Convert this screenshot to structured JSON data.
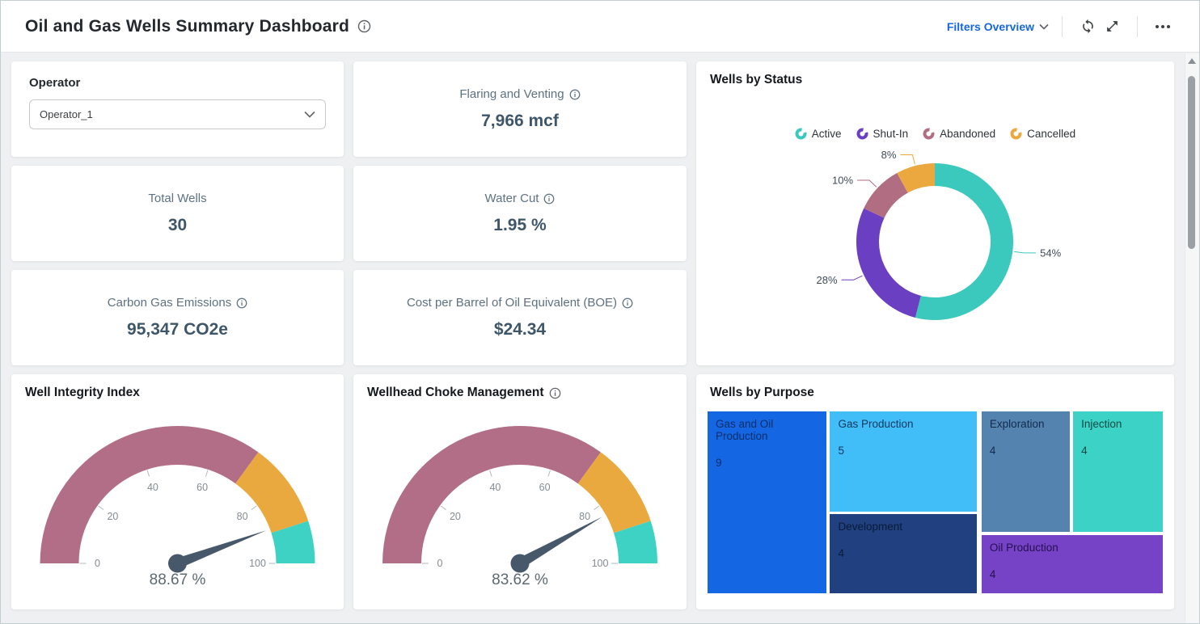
{
  "header": {
    "title": "Oil and Gas Wells Summary Dashboard",
    "filters_menu": "Filters Overview",
    "accent_blue": "#1667dd"
  },
  "operator_filter": {
    "label": "Operator",
    "selected": "Operator_1"
  },
  "kpis": [
    {
      "title": "Flaring and Venting",
      "value": "7,966 mcf",
      "has_info": true
    },
    {
      "title": "Total Wells",
      "value": "30",
      "has_info": false
    },
    {
      "title": "Water Cut",
      "value": "1.95 %",
      "has_info": true
    },
    {
      "title": "Carbon Gas Emissions",
      "value": "95,347 CO2e",
      "has_info": true
    },
    {
      "title": "Cost per Barrel of Oil Equivalent (BOE)",
      "value": "$24.34",
      "has_info": true
    }
  ],
  "chart_data": [
    {
      "type": "pie",
      "subtype": "donut",
      "title": "Wells by Status",
      "legend_position": "top",
      "start_angle": "top",
      "direction": "clockwise",
      "categories": [
        "Active",
        "Shut-In",
        "Abandoned",
        "Cancelled"
      ],
      "values": [
        54,
        28,
        10,
        8
      ],
      "value_labels": [
        "54%",
        "28%",
        "10%",
        "8%"
      ],
      "colors": [
        "#3bc9bd",
        "#6a3fc2",
        "#b16e82",
        "#eaa83e"
      ]
    },
    {
      "type": "gauge",
      "title": "Well Integrity Index",
      "has_info": false,
      "value": 88.67,
      "value_label": "88.67 %",
      "min": 0,
      "max": 100,
      "ticks": [
        0,
        20,
        40,
        60,
        80,
        100
      ],
      "bands": [
        {
          "from": 0,
          "to": 70,
          "color": "#b26e86"
        },
        {
          "from": 70,
          "to": 90,
          "color": "#eaa93e"
        },
        {
          "from": 90,
          "to": 100,
          "color": "#3ed2c5"
        }
      ],
      "needle_color": "#46586a"
    },
    {
      "type": "gauge",
      "title": "Wellhead Choke Management",
      "has_info": true,
      "value": 83.62,
      "value_label": "83.62 %",
      "min": 0,
      "max": 100,
      "ticks": [
        0,
        20,
        40,
        60,
        80,
        100
      ],
      "bands": [
        {
          "from": 0,
          "to": 70,
          "color": "#b26e86"
        },
        {
          "from": 70,
          "to": 90,
          "color": "#eaa93e"
        },
        {
          "from": 90,
          "to": 100,
          "color": "#3ed2c5"
        }
      ],
      "needle_color": "#46586a"
    },
    {
      "type": "treemap",
      "title": "Wells by Purpose",
      "items": [
        {
          "label": "Gas and Oil Production",
          "value": 9,
          "color": "#1566e2",
          "text_color": "#0d2f6b",
          "rect_pct": [
            0,
            0,
            26.1,
            100
          ]
        },
        {
          "label": "Gas Production",
          "value": 5,
          "color": "#41bdf7",
          "text_color": "#0f3a63",
          "rect_pct": [
            26.9,
            0,
            32.3,
            55.2
          ]
        },
        {
          "label": "Development",
          "value": 4,
          "color": "#20407f",
          "text_color": "#0a1b3a",
          "rect_pct": [
            26.9,
            56.6,
            32.3,
            43.4
          ]
        },
        {
          "label": "Exploration",
          "value": 4,
          "color": "#5583b0",
          "text_color": "#122c4d",
          "rect_pct": [
            60.2,
            0,
            19.4,
            66.2
          ]
        },
        {
          "label": "Injection",
          "value": 4,
          "color": "#3cd2c5",
          "text_color": "#0e4a44",
          "rect_pct": [
            80.3,
            0,
            19.7,
            66.2
          ]
        },
        {
          "label": "Oil Production",
          "value": 4,
          "color": "#7643c6",
          "text_color": "#26104f",
          "rect_pct": [
            60.2,
            68,
            39.8,
            32
          ]
        }
      ]
    }
  ]
}
